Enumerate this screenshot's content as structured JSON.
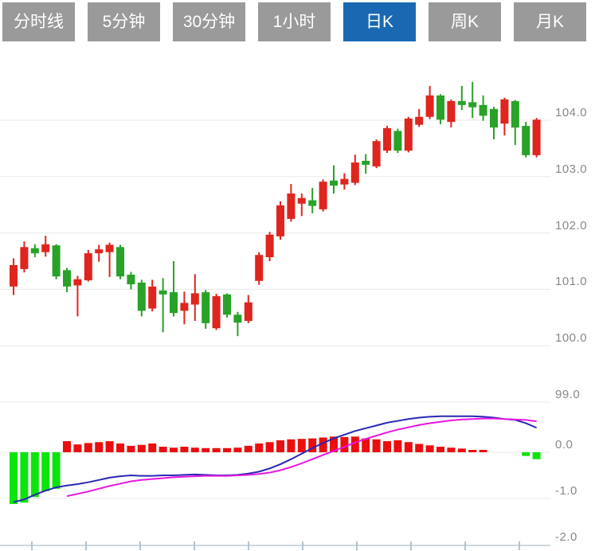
{
  "tabs": [
    {
      "label": "分时线",
      "active": false
    },
    {
      "label": "5分钟",
      "active": false
    },
    {
      "label": "30分钟",
      "active": false
    },
    {
      "label": "1小时",
      "active": false
    },
    {
      "label": "日K",
      "active": true
    },
    {
      "label": "周K",
      "active": false
    },
    {
      "label": "月K",
      "active": false
    }
  ],
  "colors": {
    "tab_bg": "#9a9a9a",
    "tab_active_bg": "#1a68b2",
    "tab_text": "#ffffff",
    "candle_up": "#df251e",
    "candle_down": "#28a228",
    "macd_up": "#ea0e0e",
    "macd_down": "#0ce40c",
    "dif_line": "#2828b4",
    "dea_line": "#e816e0",
    "gridline": "#e9e9e9",
    "axis_line": "#ccd7de",
    "axis_tick": "#b0c4d0",
    "label_text": "#888888"
  },
  "axis": {
    "price_tick_labels": [
      "104.0",
      "103.0",
      "102.0",
      "101.0",
      "100.0",
      "99.0"
    ],
    "macd_tick_labels": [
      "0.0",
      "-1.0",
      "-2.0"
    ]
  },
  "chart_data": {
    "type": "candlestick+macd",
    "timeframe_selected": "日K",
    "up_candle_color_convention": "red-up-green-down",
    "legend_position": "none",
    "grid": true,
    "price_axis": {
      "ticks": [
        104.0,
        103.0,
        102.0,
        101.0,
        100.0,
        99.0
      ],
      "ylim": [
        99.0,
        105.15
      ]
    },
    "macd_axis": {
      "ticks": [
        0.0,
        -1.0,
        -2.0
      ],
      "ylim": [
        -2.14,
        1.0
      ]
    },
    "candles_ohlc": [
      [
        101.05,
        101.55,
        100.9,
        101.43
      ],
      [
        101.36,
        101.85,
        101.3,
        101.75
      ],
      [
        101.73,
        101.8,
        101.57,
        101.64
      ],
      [
        101.66,
        101.95,
        101.58,
        101.8
      ],
      [
        101.78,
        101.8,
        101.18,
        101.23
      ],
      [
        101.34,
        101.38,
        100.95,
        101.05
      ],
      [
        101.07,
        101.24,
        100.52,
        101.18
      ],
      [
        101.16,
        101.7,
        101.14,
        101.64
      ],
      [
        101.64,
        101.79,
        101.49,
        101.71
      ],
      [
        101.66,
        101.83,
        101.22,
        101.79
      ],
      [
        101.75,
        101.79,
        101.18,
        101.23
      ],
      [
        101.26,
        101.31,
        101.0,
        101.09
      ],
      [
        101.12,
        101.17,
        100.52,
        100.62
      ],
      [
        100.66,
        101.17,
        100.61,
        101.05
      ],
      [
        100.98,
        101.2,
        100.24,
        100.91
      ],
      [
        100.95,
        101.5,
        100.52,
        100.58
      ],
      [
        100.62,
        100.96,
        100.38,
        100.76
      ],
      [
        100.73,
        101.27,
        100.44,
        100.93
      ],
      [
        100.95,
        100.99,
        100.3,
        100.4
      ],
      [
        100.31,
        100.92,
        100.28,
        100.88
      ],
      [
        100.91,
        100.93,
        100.5,
        100.55
      ],
      [
        100.55,
        100.6,
        100.17,
        100.41
      ],
      [
        100.44,
        100.9,
        100.4,
        100.77
      ],
      [
        101.15,
        101.66,
        101.08,
        101.61
      ],
      [
        101.57,
        102.02,
        101.5,
        101.97
      ],
      [
        101.94,
        102.56,
        101.88,
        102.49
      ],
      [
        102.25,
        102.87,
        102.2,
        102.7
      ],
      [
        102.52,
        102.7,
        102.3,
        102.62
      ],
      [
        102.58,
        102.8,
        102.35,
        102.48
      ],
      [
        102.42,
        102.95,
        102.38,
        102.91
      ],
      [
        102.93,
        103.2,
        102.7,
        102.84
      ],
      [
        102.86,
        103.06,
        102.77,
        102.96
      ],
      [
        102.89,
        103.39,
        102.85,
        103.25
      ],
      [
        103.28,
        103.4,
        103.05,
        103.21
      ],
      [
        103.18,
        103.66,
        103.15,
        103.63
      ],
      [
        103.46,
        103.9,
        103.42,
        103.86
      ],
      [
        103.81,
        103.85,
        103.42,
        103.46
      ],
      [
        103.46,
        104.06,
        103.43,
        104.03
      ],
      [
        103.92,
        104.2,
        103.88,
        104.06
      ],
      [
        104.06,
        104.61,
        104.02,
        104.44
      ],
      [
        104.44,
        104.46,
        103.93,
        104.01
      ],
      [
        103.97,
        104.37,
        103.87,
        104.34
      ],
      [
        104.34,
        104.61,
        104.18,
        104.27
      ],
      [
        104.32,
        104.68,
        104.04,
        104.23
      ],
      [
        104.27,
        104.44,
        103.99,
        104.08
      ],
      [
        104.2,
        104.24,
        103.66,
        103.87
      ],
      [
        103.94,
        104.4,
        103.73,
        104.37
      ],
      [
        104.34,
        104.36,
        103.56,
        103.87
      ],
      [
        103.9,
        103.97,
        103.34,
        103.38
      ],
      [
        103.38,
        104.04,
        103.34,
        104.01
      ]
    ],
    "macd": {
      "histogram": [
        -1.12,
        -1.09,
        -0.97,
        -0.84,
        -0.79,
        0.24,
        0.17,
        0.2,
        0.22,
        0.24,
        0.19,
        0.14,
        0.16,
        0.19,
        0.12,
        0.1,
        0.12,
        0.1,
        0.09,
        0.09,
        0.09,
        0.1,
        0.14,
        0.19,
        0.22,
        0.26,
        0.28,
        0.29,
        0.3,
        0.32,
        0.34,
        0.33,
        0.34,
        0.3,
        0.28,
        0.24,
        0.26,
        0.22,
        0.18,
        0.15,
        0.12,
        0.1,
        0.08,
        0.05,
        0.03,
        0,
        0,
        0,
        -0.08,
        -0.15
      ],
      "dif": [
        -1.08,
        -1.02,
        -0.92,
        -0.83,
        -0.76,
        -0.72,
        -0.69,
        -0.65,
        -0.6,
        -0.55,
        -0.52,
        -0.5,
        -0.51,
        -0.51,
        -0.5,
        -0.5,
        -0.49,
        -0.48,
        -0.49,
        -0.5,
        -0.5,
        -0.49,
        -0.46,
        -0.42,
        -0.35,
        -0.26,
        -0.15,
        -0.03,
        0.09,
        0.2,
        0.3,
        0.38,
        0.46,
        0.52,
        0.58,
        0.64,
        0.68,
        0.72,
        0.75,
        0.77,
        0.78,
        0.78,
        0.78,
        0.78,
        0.77,
        0.75,
        0.72,
        0.7,
        0.63,
        0.53
      ],
      "dea": [
        null,
        null,
        null,
        null,
        null,
        -0.95,
        -0.9,
        -0.85,
        -0.79,
        -0.73,
        -0.68,
        -0.63,
        -0.6,
        -0.58,
        -0.56,
        -0.54,
        -0.53,
        -0.52,
        -0.51,
        -0.51,
        -0.51,
        -0.5,
        -0.49,
        -0.47,
        -0.44,
        -0.39,
        -0.32,
        -0.24,
        -0.15,
        -0.06,
        0.03,
        0.12,
        0.21,
        0.29,
        0.36,
        0.43,
        0.49,
        0.54,
        0.59,
        0.63,
        0.66,
        0.69,
        0.71,
        0.72,
        0.73,
        0.73,
        0.72,
        0.71,
        0.7,
        0.67
      ]
    }
  }
}
